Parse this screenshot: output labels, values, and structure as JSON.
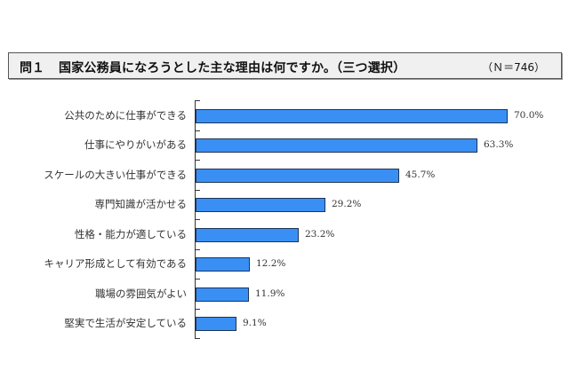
{
  "header": {
    "question_no": "問１",
    "title": "国家公務員になろうとした主な理由は何ですか。（三つ選択）",
    "sample_size": "（Ｎ＝746）"
  },
  "colors": {
    "bar_fill": "#3a8ff5",
    "bar_border": "#1c3557",
    "title_bg": "#f0f0f0"
  },
  "chart_data": {
    "type": "bar",
    "orientation": "horizontal",
    "title": "問１ 国家公務員になろうとした主な理由は何ですか。（三つ選択）",
    "subtitle": "（Ｎ＝746）",
    "categories": [
      "公共のために仕事ができる",
      "仕事にやりがいがある",
      "スケールの大きい仕事ができる",
      "専門知識が活かせる",
      "性格・能力が適している",
      "キャリア形成として有効である",
      "職場の雰囲気がよい",
      "堅実で生活が安定している"
    ],
    "values": [
      70.0,
      63.3,
      45.7,
      29.2,
      23.2,
      12.2,
      11.9,
      9.1
    ],
    "value_labels": [
      "70.0%",
      "63.3%",
      "45.7%",
      "29.2%",
      "23.2%",
      "12.2%",
      "11.9%",
      "9.1%"
    ],
    "xlabel": "",
    "ylabel": "",
    "xlim": [
      0,
      80
    ],
    "grid": false,
    "legend": null
  }
}
